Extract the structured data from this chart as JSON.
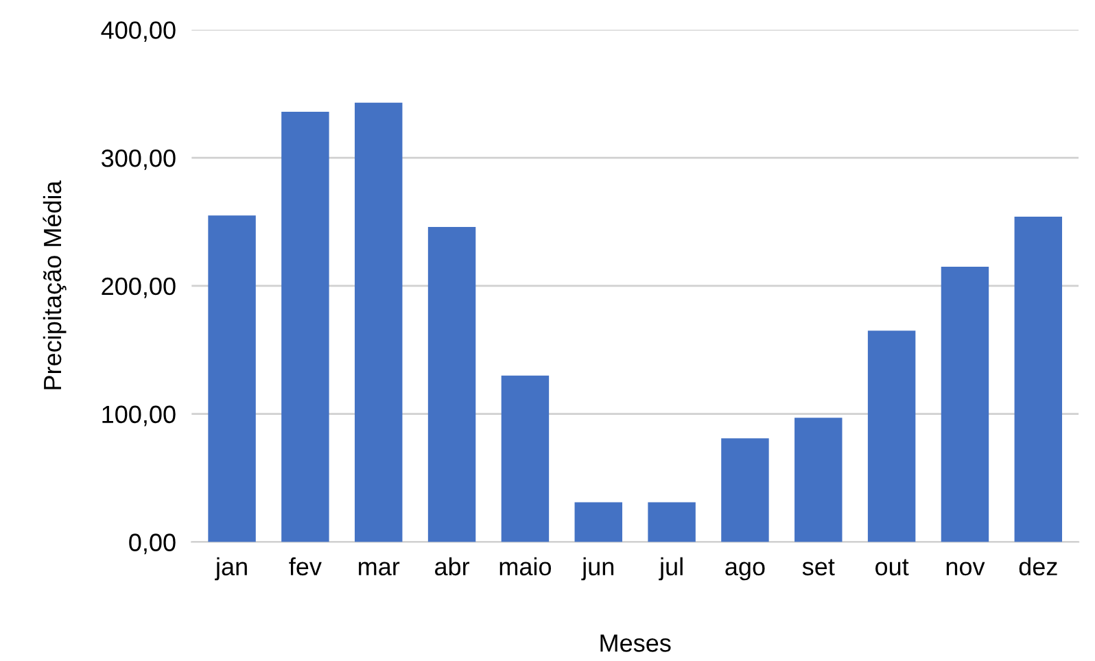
{
  "chart_data": {
    "type": "bar",
    "xlabel": "Meses",
    "ylabel": "Precipitação Média",
    "categories": [
      "jan",
      "fev",
      "mar",
      "abr",
      "maio",
      "jun",
      "jul",
      "ago",
      "set",
      "out",
      "nov",
      "dez"
    ],
    "values": [
      255,
      336,
      343,
      246,
      130,
      31,
      31,
      81,
      97,
      165,
      215,
      254
    ],
    "color": "#4472c4",
    "ylim": [
      0,
      400
    ],
    "yticks": [
      {
        "value": 0,
        "label": "0,00"
      },
      {
        "value": 100,
        "label": "100,00"
      },
      {
        "value": 200,
        "label": "200,00"
      },
      {
        "value": 300,
        "label": "300,00"
      },
      {
        "value": 400,
        "label": "400,00"
      }
    ],
    "grid": "y",
    "legend": false
  }
}
